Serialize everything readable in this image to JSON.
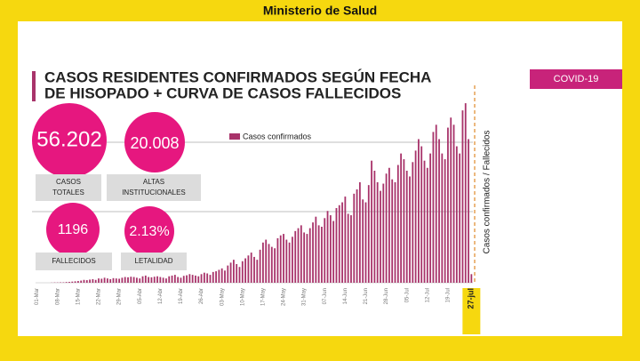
{
  "header": "Ministerio de Salud",
  "tag": "COVID-19",
  "title_lines": [
    "CASOS RESIDENTES CONFIRMADOS SEGÚN FECHA",
    "DE HISOPADO + CURVA DE CASOS FALLECIDOS"
  ],
  "stats": [
    {
      "value": "56.202",
      "label": [
        "CASOS",
        "TOTALES"
      ]
    },
    {
      "value": "20.008",
      "label": [
        "ALTAS",
        "INSTITUCIONALES"
      ]
    },
    {
      "value": "1196",
      "label": [
        "FALLECIDOS"
      ]
    },
    {
      "value": "2.13%",
      "label": [
        "LETALIDAD"
      ]
    }
  ],
  "chart_data": {
    "type": "bar",
    "y_label": "Casos confirmados / Fallecidos",
    "ylim": [
      0,
      1300
    ],
    "categories": [
      "01-Mar",
      null,
      null,
      null,
      null,
      null,
      null,
      "08-Mar",
      null,
      null,
      null,
      null,
      null,
      null,
      "15-Mar",
      null,
      null,
      null,
      null,
      null,
      null,
      "22-Mar",
      null,
      null,
      null,
      null,
      null,
      null,
      "29-Mar",
      null,
      null,
      null,
      null,
      null,
      null,
      "05-Abr",
      null,
      null,
      null,
      null,
      null,
      null,
      "12-Abr",
      null,
      null,
      null,
      null,
      null,
      null,
      "19-Abr",
      null,
      null,
      null,
      null,
      null,
      null,
      "26-Abr",
      null,
      null,
      null,
      null,
      null,
      null,
      "03-May",
      null,
      null,
      null,
      null,
      null,
      null,
      "10-May",
      null,
      null,
      null,
      null,
      null,
      null,
      "17-May",
      null,
      null,
      null,
      null,
      null,
      null,
      "24-May",
      null,
      null,
      null,
      null,
      null,
      null,
      "31-May",
      null,
      null,
      null,
      null,
      null,
      null,
      "07-Jun",
      null,
      null,
      null,
      null,
      null,
      null,
      "14-Jun",
      null,
      null,
      null,
      null,
      null,
      null,
      "21-Jun",
      null,
      null,
      null,
      null,
      null,
      null,
      "28-Jun",
      null,
      null,
      null,
      null,
      null,
      null,
      "05-Jul",
      null,
      null,
      null,
      null,
      null,
      null,
      "12-Jul",
      null,
      null,
      null,
      null,
      null,
      null,
      "19-Jul",
      null,
      null,
      null,
      null,
      null,
      null,
      null,
      "27-jul"
    ],
    "series": [
      {
        "name": "Casos confirmados",
        "color": "#a8336a",
        "values": [
          0,
          0,
          0,
          0,
          0,
          1,
          2,
          2,
          3,
          3,
          5,
          6,
          8,
          10,
          12,
          15,
          20,
          18,
          22,
          25,
          20,
          30,
          28,
          35,
          30,
          25,
          32,
          30,
          28,
          35,
          40,
          38,
          42,
          40,
          35,
          30,
          45,
          50,
          40,
          38,
          42,
          45,
          40,
          35,
          30,
          45,
          50,
          55,
          40,
          35,
          48,
          52,
          60,
          55,
          50,
          45,
          60,
          70,
          65,
          55,
          75,
          80,
          90,
          100,
          85,
          120,
          140,
          160,
          130,
          110,
          150,
          170,
          190,
          210,
          180,
          160,
          230,
          280,
          300,
          270,
          250,
          240,
          310,
          330,
          340,
          300,
          280,
          320,
          360,
          380,
          400,
          350,
          340,
          380,
          420,
          460,
          400,
          390,
          450,
          500,
          470,
          430,
          520,
          540,
          560,
          600,
          480,
          470,
          620,
          650,
          700,
          580,
          560,
          680,
          850,
          780,
          700,
          640,
          690,
          760,
          800,
          720,
          700,
          820,
          900,
          860,
          780,
          740,
          840,
          920,
          1000,
          950,
          850,
          800,
          900,
          1050,
          1100,
          1000,
          900,
          860,
          1080,
          1150,
          1100,
          950,
          900,
          1200,
          1250,
          1000,
          60
        ]
      }
    ]
  }
}
